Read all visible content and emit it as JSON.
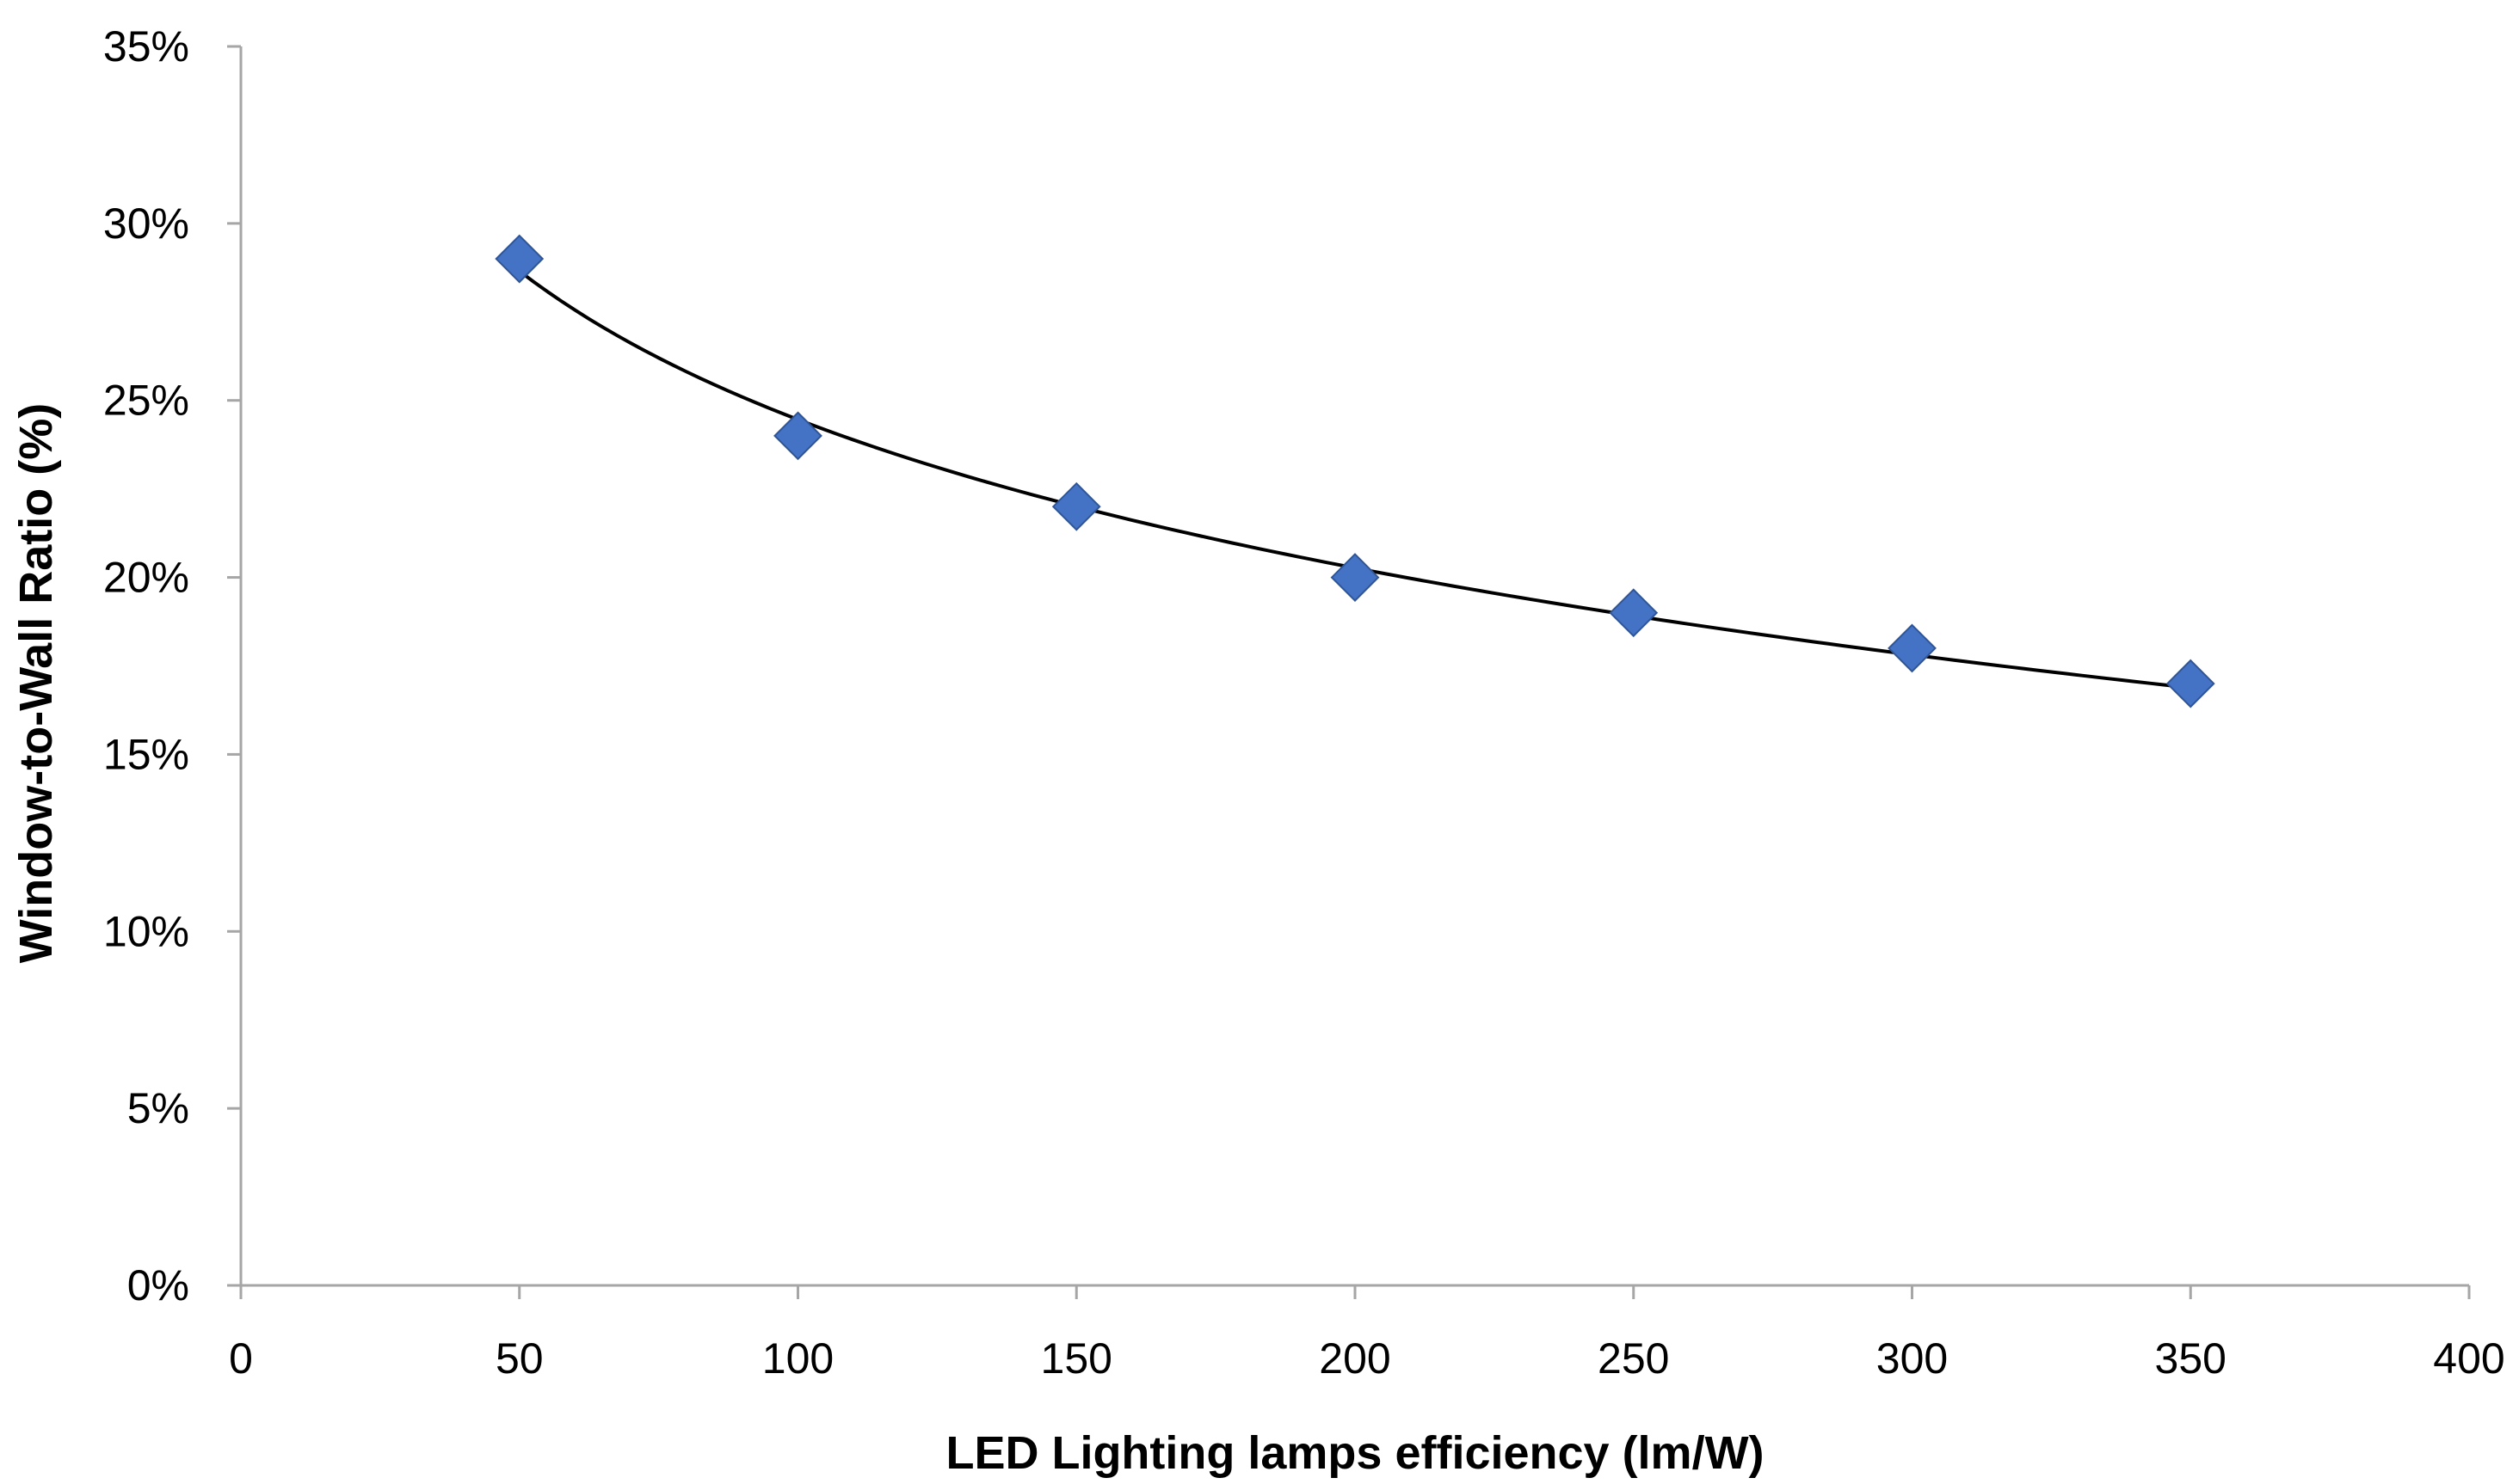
{
  "chart_data": {
    "type": "scatter",
    "title": "",
    "xlabel": "LED Lighting lamps efficiency (lm/W)",
    "ylabel": "Window-to-Wall Ratio (%)",
    "xlim": [
      0,
      400
    ],
    "ylim": [
      0,
      35
    ],
    "x_ticks": [
      "0",
      "50",
      "100",
      "150",
      "200",
      "250",
      "300",
      "350",
      "400"
    ],
    "y_ticks": [
      "0%",
      "5%",
      "10%",
      "15%",
      "20%",
      "25%",
      "30%",
      "35%"
    ],
    "grid": false,
    "legend": "none",
    "series": [
      {
        "name": "Window-to-Wall Ratio",
        "marker": "diamond",
        "x": [
          50,
          100,
          150,
          200,
          250,
          300,
          350
        ],
        "y": [
          29,
          24,
          22,
          20,
          19,
          18,
          17
        ]
      }
    ],
    "trendline": {
      "type": "logarithmic",
      "x_range": [
        50,
        350
      ],
      "color": "#000000"
    },
    "colors": {
      "marker_fill": "#4472C4",
      "marker_stroke": "#2F5597",
      "axis": "#A6A6A6",
      "text": "#000000"
    }
  }
}
